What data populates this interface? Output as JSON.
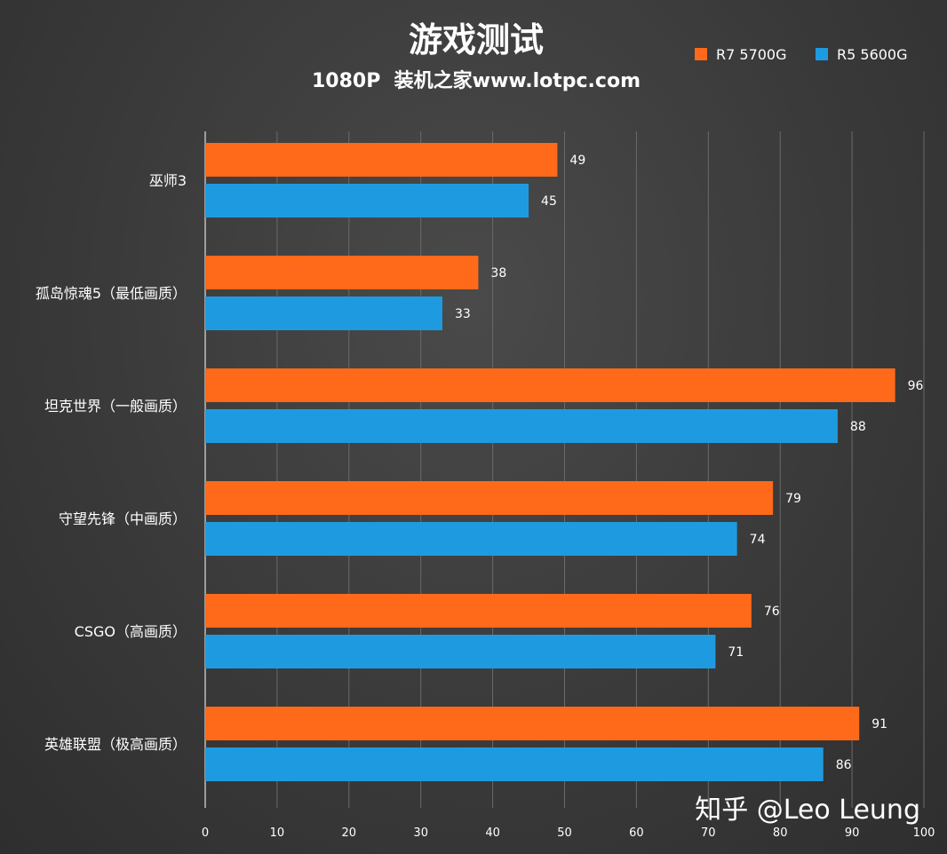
{
  "chart_data": {
    "type": "bar",
    "orientation": "horizontal",
    "title": "游戏测试",
    "subtitle": "1080P  装机之家www.lotpc.com",
    "categories": [
      "巫师3",
      "孤岛惊魂5（最低画质）",
      "坦克世界（一般画质）",
      "守望先锋（中画质）",
      "CSGO（高画质）",
      "英雄联盟（极高画质）"
    ],
    "series": [
      {
        "name": "R7 5700G",
        "color": "#ff6a1a",
        "values": [
          49,
          38,
          96,
          79,
          76,
          91
        ]
      },
      {
        "name": "R5 5600G",
        "color": "#1e9be0",
        "values": [
          45,
          33,
          88,
          74,
          71,
          86
        ]
      }
    ],
    "xlim": [
      0,
      100
    ],
    "xticks": [
      0,
      10,
      20,
      30,
      40,
      50,
      60,
      70,
      80,
      90,
      100
    ],
    "grid": true,
    "legend_position": "top-right"
  },
  "watermark": "知乎 @Leo Leung"
}
